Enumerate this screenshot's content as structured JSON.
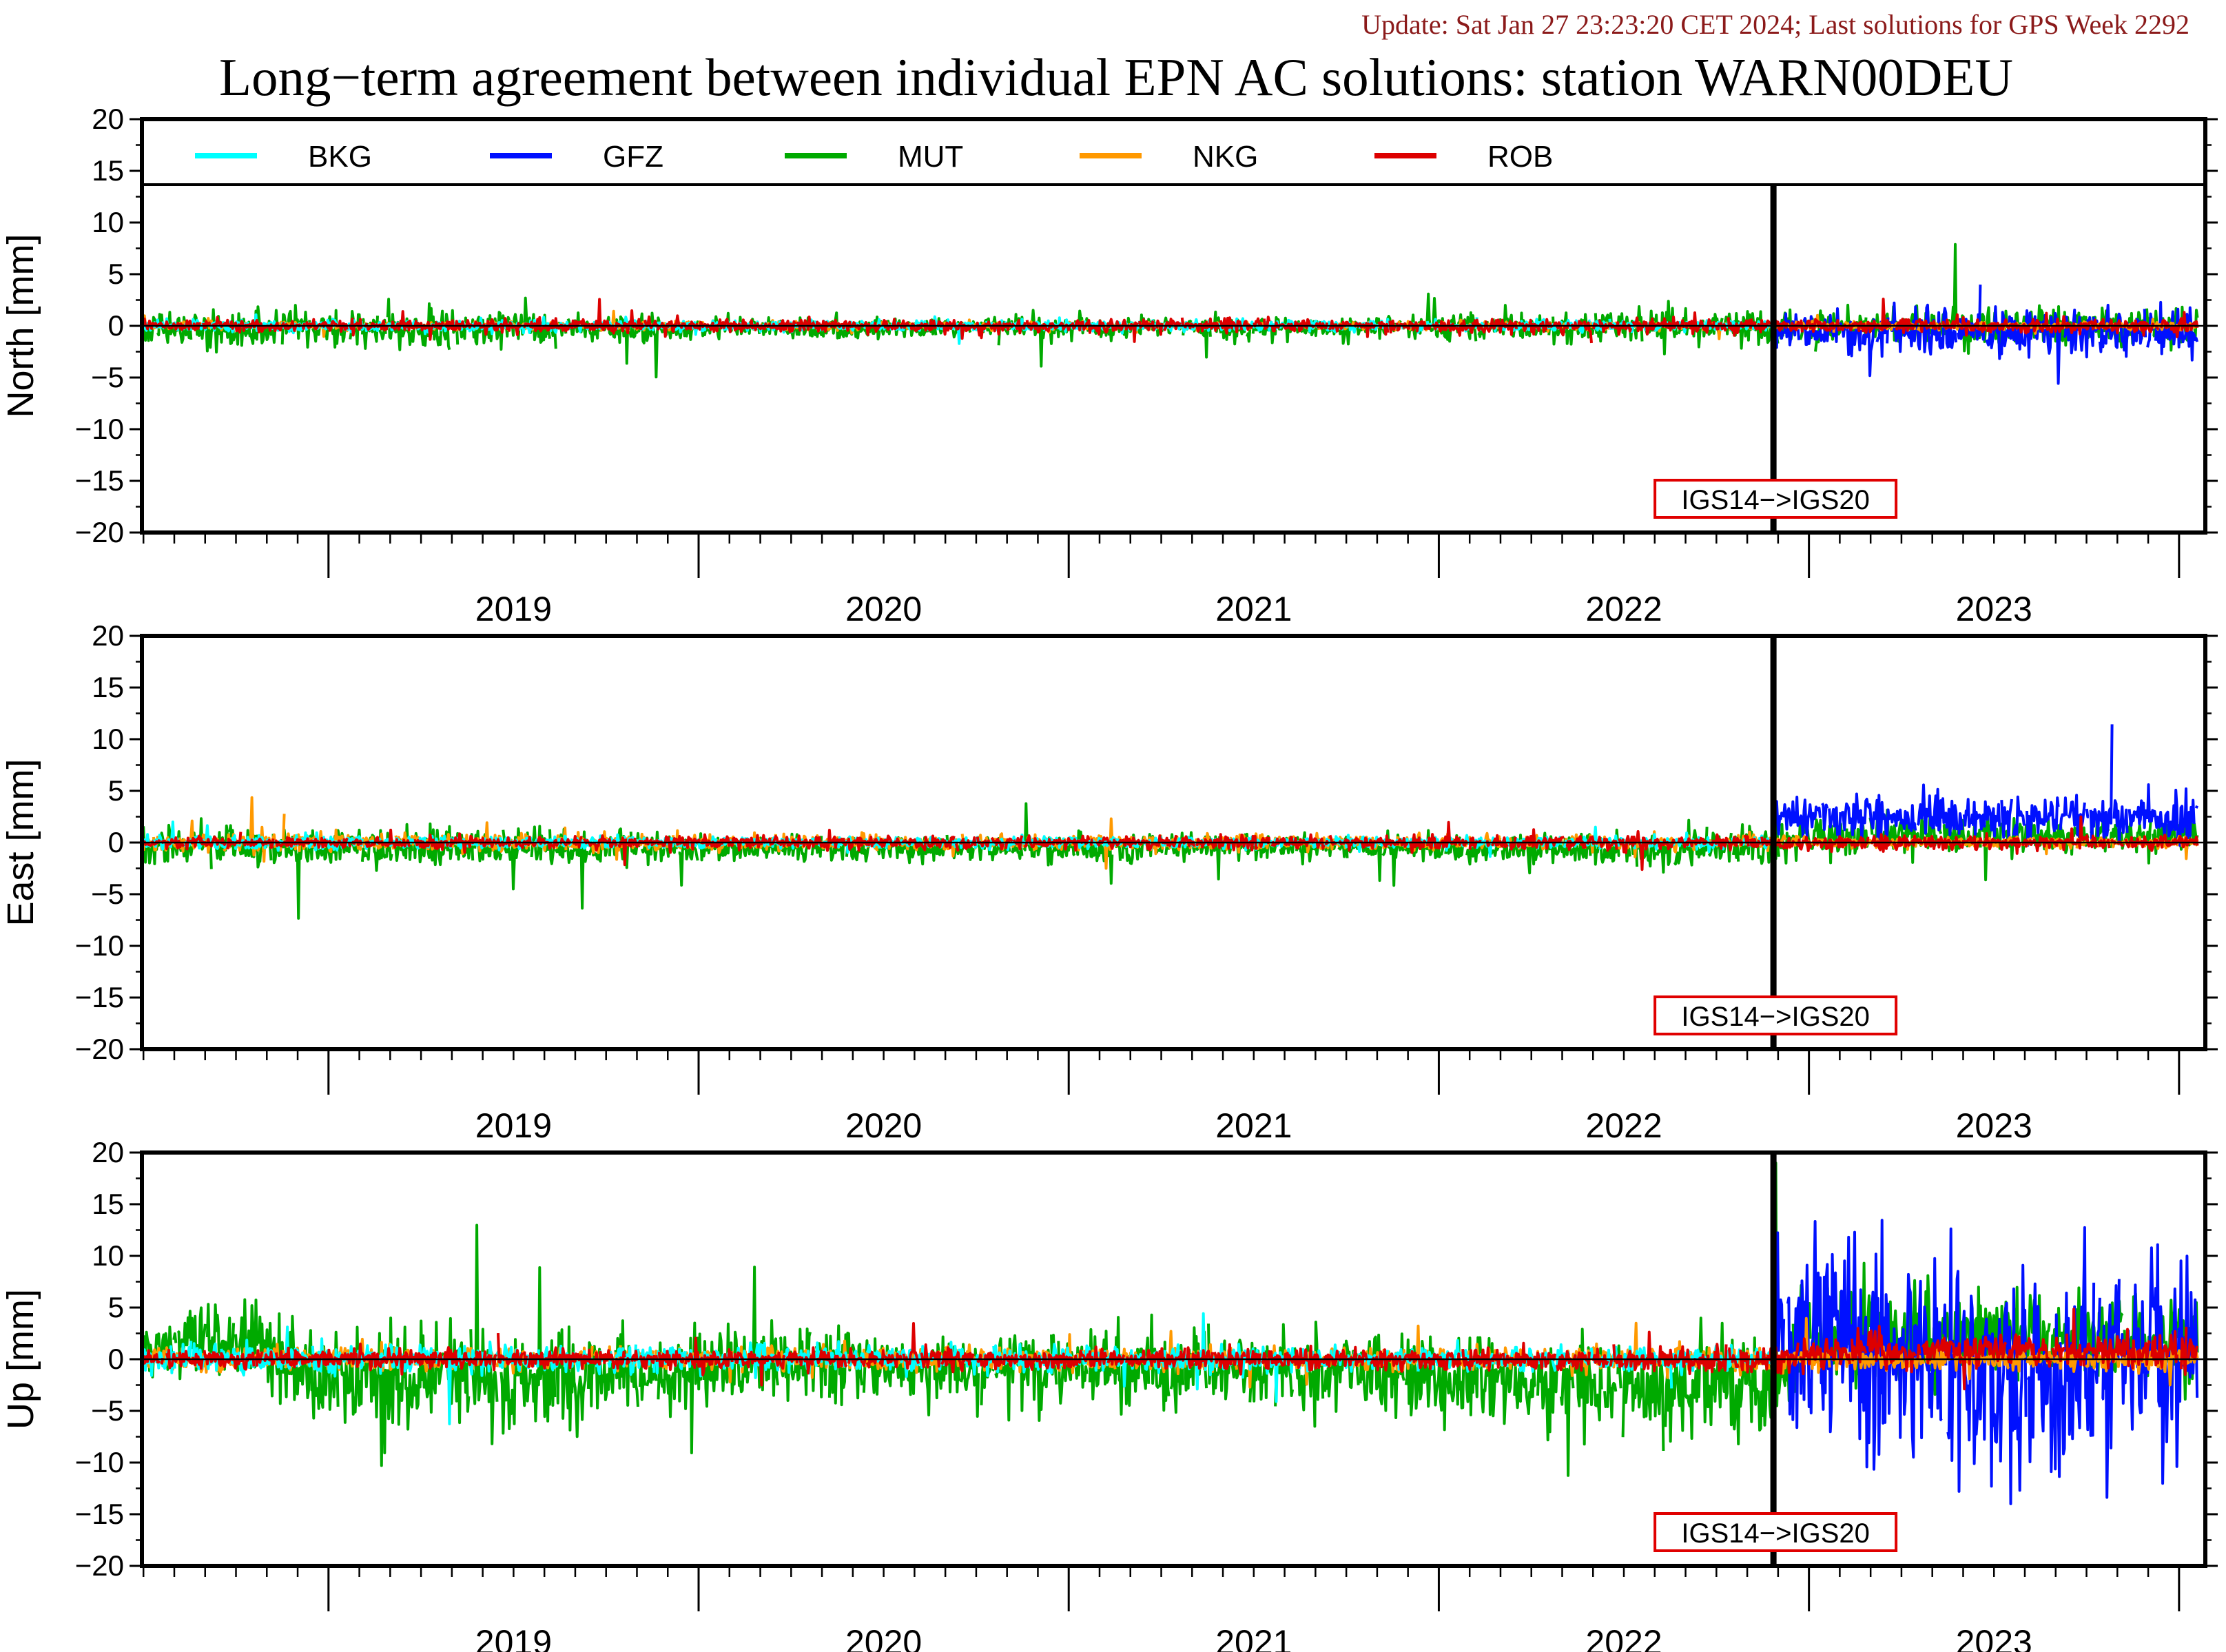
{
  "header": {
    "update_line": "Update: Sat Jan 27 23:23:20 CET 2024; Last solutions for GPS Week 2292",
    "title": "Long−term agreement between individual EPN AC solutions: station WARN00DEU"
  },
  "colors": {
    "update_text": "#8b1a1a",
    "marker_box": "#e00000",
    "zero_line": "#000000"
  },
  "legend": {
    "placement": "inside top of first panel, horizontal",
    "entries": [
      {
        "name": "BKG",
        "color": "#00ffff"
      },
      {
        "name": "GFZ",
        "color": "#0010ff"
      },
      {
        "name": "MUT",
        "color": "#00aa00"
      },
      {
        "name": "NKG",
        "color": "#ff9900"
      },
      {
        "name": "ROB",
        "color": "#dd0000"
      }
    ]
  },
  "chart_data": [
    {
      "type": "line",
      "panel": "north",
      "ylabel": "North [mm]",
      "ylim": [
        -20,
        20
      ],
      "yticks": [
        -20,
        -15,
        -10,
        -5,
        0,
        5,
        10,
        15,
        20
      ],
      "ytick_labels": [
        "−20",
        "−15",
        "−10",
        "−5",
        "0",
        "5",
        "10",
        "15",
        "20"
      ],
      "xlim": [
        "2018-07-01",
        "2024-01-27"
      ],
      "year_labels": [
        "2019",
        "2020",
        "2021",
        "2022",
        "2023"
      ],
      "marker_date": "2022-11-27",
      "marker_label": "IGS14−>IGS20",
      "series": [
        {
          "name": "BKG",
          "profile": [
            [
              2018.5,
              0.3
            ],
            [
              2020.0,
              0.3
            ],
            [
              2022.9,
              0.3
            ]
          ]
        },
        {
          "name": "GFZ",
          "profile": [
            [
              2022.91,
              1.0
            ],
            [
              2023.5,
              1.5
            ],
            [
              2024.05,
              1.2
            ]
          ],
          "bias": [
            [
              2022.91,
              -0.5
            ],
            [
              2024.05,
              -0.6
            ]
          ]
        },
        {
          "name": "MUT",
          "profile": [
            [
              2018.5,
              1.1
            ],
            [
              2019.5,
              1.0
            ],
            [
              2020.0,
              0.6
            ],
            [
              2021.8,
              0.6
            ],
            [
              2022.9,
              1.0
            ],
            [
              2024.05,
              1.1
            ]
          ],
          "bias": [
            [
              2018.5,
              -0.3
            ],
            [
              2024.05,
              0.0
            ]
          ]
        },
        {
          "name": "NKG",
          "profile": [
            [
              2018.5,
              0.2
            ],
            [
              2024.05,
              0.2
            ]
          ]
        },
        {
          "name": "ROB",
          "profile": [
            [
              2018.5,
              0.3
            ],
            [
              2024.05,
              0.4
            ]
          ]
        }
      ]
    },
    {
      "type": "line",
      "panel": "east",
      "ylabel": "East [mm]",
      "ylim": [
        -20,
        20
      ],
      "yticks": [
        -20,
        -15,
        -10,
        -5,
        0,
        5,
        10,
        15,
        20
      ],
      "ytick_labels": [
        "−20",
        "−15",
        "−10",
        "−5",
        "0",
        "5",
        "10",
        "15",
        "20"
      ],
      "xlim": [
        "2018-07-01",
        "2024-01-27"
      ],
      "year_labels": [
        "2019",
        "2020",
        "2021",
        "2022",
        "2023"
      ],
      "marker_date": "2022-11-27",
      "marker_label": "IGS14−>IGS20",
      "series": [
        {
          "name": "BKG",
          "profile": [
            [
              2018.5,
              0.4
            ],
            [
              2020.0,
              0.3
            ],
            [
              2022.9,
              0.3
            ]
          ]
        },
        {
          "name": "GFZ",
          "profile": [
            [
              2022.91,
              1.3
            ],
            [
              2024.05,
              1.3
            ]
          ],
          "bias": [
            [
              2022.91,
              2.5
            ],
            [
              2024.05,
              2.4
            ]
          ]
        },
        {
          "name": "MUT",
          "profile": [
            [
              2018.5,
              1.1
            ],
            [
              2019.5,
              1.1
            ],
            [
              2020.0,
              0.7
            ],
            [
              2021.8,
              0.7
            ],
            [
              2022.9,
              1.1
            ],
            [
              2024.05,
              0.9
            ]
          ],
          "bias": [
            [
              2018.5,
              -0.5
            ],
            [
              2022.9,
              -0.6
            ],
            [
              2023.0,
              0.7
            ],
            [
              2024.05,
              0.8
            ]
          ]
        },
        {
          "name": "NKG",
          "profile": [
            [
              2018.5,
              0.5
            ],
            [
              2024.05,
              0.3
            ]
          ]
        },
        {
          "name": "ROB",
          "profile": [
            [
              2018.5,
              0.3
            ],
            [
              2024.05,
              0.4
            ]
          ]
        }
      ]
    },
    {
      "type": "line",
      "panel": "up",
      "ylabel": "Up [mm]",
      "ylim": [
        -20,
        20
      ],
      "yticks": [
        -20,
        -15,
        -10,
        -5,
        0,
        5,
        10,
        15,
        20
      ],
      "ytick_labels": [
        "−20",
        "−15",
        "−10",
        "−5",
        "0",
        "5",
        "10",
        "15",
        "20"
      ],
      "xlim": [
        "2018-07-01",
        "2024-01-27"
      ],
      "year_labels": [
        "2019",
        "2020",
        "2021",
        "2022",
        "2023"
      ],
      "marker_date": "2022-11-27",
      "marker_label": "IGS14−>IGS20",
      "series": [
        {
          "name": "BKG",
          "profile": [
            [
              2018.5,
              0.8
            ],
            [
              2020.0,
              0.7
            ],
            [
              2022.9,
              0.6
            ]
          ]
        },
        {
          "name": "GFZ",
          "profile": [
            [
              2022.91,
              5.5
            ],
            [
              2023.5,
              6.0
            ],
            [
              2024.05,
              5.5
            ]
          ],
          "bias": [
            [
              2022.91,
              1.5
            ],
            [
              2023.3,
              0.5
            ],
            [
              2023.6,
              -2.5
            ],
            [
              2024.05,
              2.0
            ]
          ]
        },
        {
          "name": "MUT",
          "profile": [
            [
              2018.5,
              1.5
            ],
            [
              2018.9,
              2.5
            ],
            [
              2019.5,
              3.0
            ],
            [
              2020.0,
              2.0
            ],
            [
              2021.8,
              2.2
            ],
            [
              2022.9,
              3.0
            ],
            [
              2024.05,
              2.0
            ]
          ],
          "bias": [
            [
              2018.5,
              1.0
            ],
            [
              2018.8,
              2.5
            ],
            [
              2018.95,
              -2.0
            ],
            [
              2019.9,
              -1.5
            ],
            [
              2020.0,
              -0.5
            ],
            [
              2021.8,
              -1.0
            ],
            [
              2022.4,
              -3.0
            ],
            [
              2022.9,
              -2.5
            ],
            [
              2023.0,
              2.5
            ],
            [
              2024.05,
              2.0
            ]
          ]
        },
        {
          "name": "NKG",
          "profile": [
            [
              2018.5,
              0.6
            ],
            [
              2024.05,
              0.6
            ]
          ]
        },
        {
          "name": "ROB",
          "profile": [
            [
              2018.5,
              0.5
            ],
            [
              2022.3,
              0.6
            ],
            [
              2022.9,
              0.8
            ],
            [
              2024.05,
              1.0
            ]
          ],
          "bias": [
            [
              2018.5,
              0.0
            ],
            [
              2022.91,
              0.0
            ],
            [
              2023.1,
              0.8
            ],
            [
              2024.05,
              0.8
            ]
          ]
        }
      ]
    }
  ]
}
